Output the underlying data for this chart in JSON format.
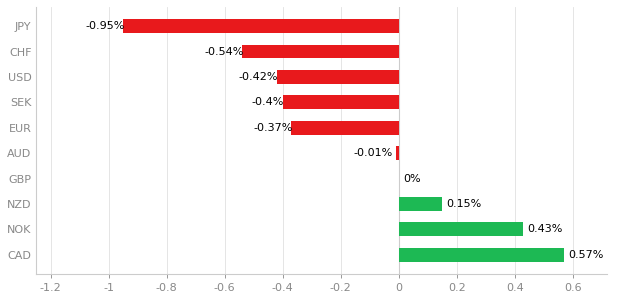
{
  "categories": [
    "JPY",
    "CHF",
    "USD",
    "SEK",
    "EUR",
    "AUD",
    "GBP",
    "NZD",
    "NOK",
    "CAD"
  ],
  "values": [
    -0.95,
    -0.54,
    -0.42,
    -0.4,
    -0.37,
    -0.01,
    0.0,
    0.15,
    0.43,
    0.57
  ],
  "labels": [
    "-0.95%",
    "-0.54%",
    "-0.42%",
    "-0.4%",
    "-0.37%",
    "-0.01%",
    "0%",
    "0.15%",
    "0.43%",
    "0.57%"
  ],
  "bar_color_negative": "#e8191c",
  "bar_color_positive": "#1db954",
  "xlim": [
    -1.25,
    0.72
  ],
  "xticks": [
    -1.2,
    -1.0,
    -0.8,
    -0.6,
    -0.4,
    -0.2,
    0.0,
    0.2,
    0.4,
    0.6
  ],
  "xtick_labels": [
    "-1.2",
    "-1",
    "-0.8",
    "-0.6",
    "-0.4",
    "-0.2",
    "0",
    "0.2",
    "0.4",
    "0.6"
  ],
  "background_color": "#ffffff",
  "bar_height": 0.55,
  "label_fontsize": 8.0,
  "tick_fontsize": 8.0,
  "ytick_color": "#888888",
  "xtick_color": "#888888",
  "spine_color": "#cccccc",
  "grid_color": "#e0e0e0"
}
